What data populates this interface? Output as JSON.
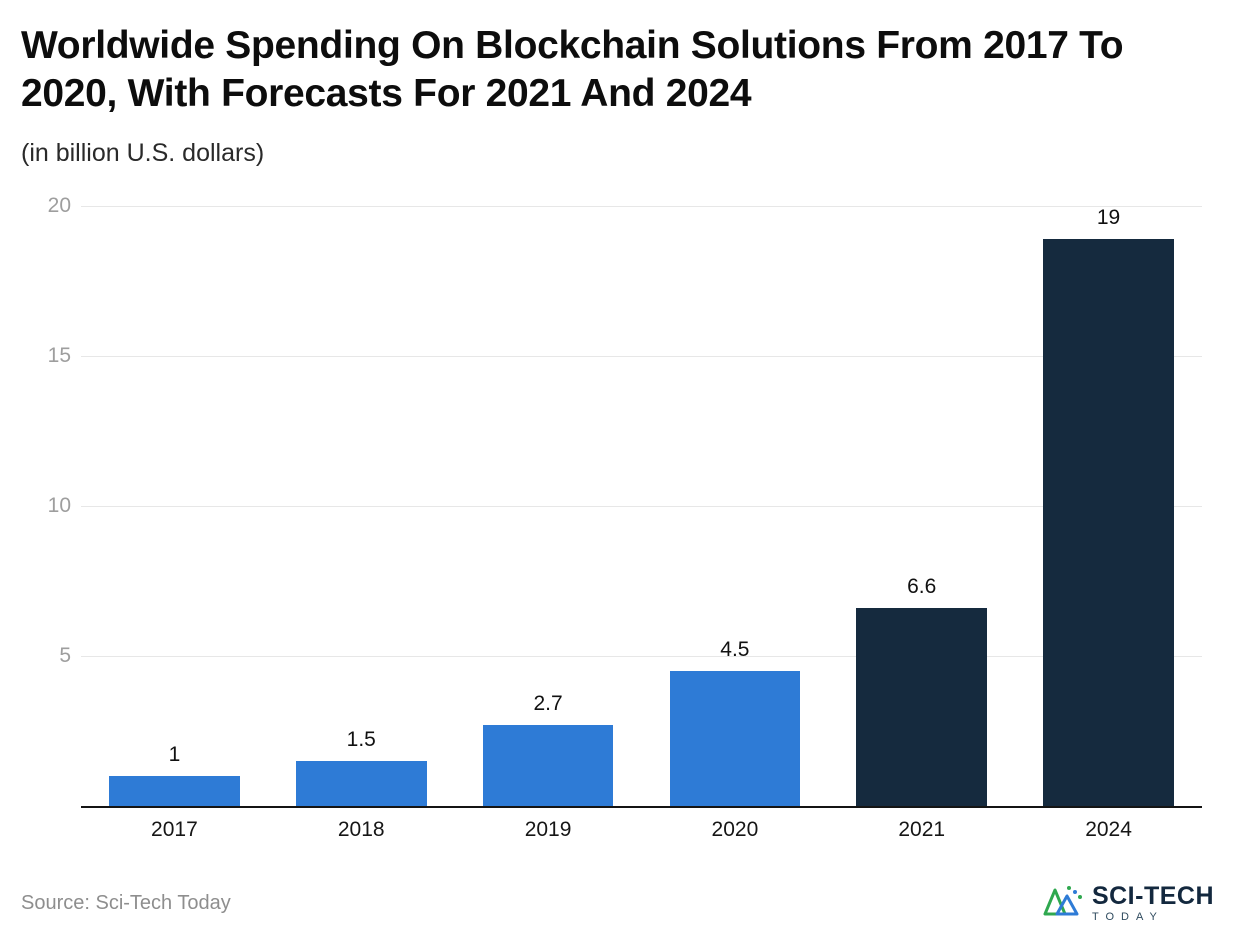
{
  "header": {
    "title": "Worldwide Spending On Blockchain Solutions From 2017 To 2020, With Forecasts For 2021 And 2024",
    "subtitle": "(in billion U.S. dollars)"
  },
  "chart_data": {
    "type": "bar",
    "title": "Worldwide Spending On Blockchain Solutions From 2017 To 2020, With Forecasts For 2021 And 2024",
    "subtitle": "(in billion U.S. dollars)",
    "categories": [
      "2017",
      "2018",
      "2019",
      "2020",
      "2021",
      "2024"
    ],
    "values": [
      1,
      1.5,
      2.7,
      4.5,
      6.6,
      19
    ],
    "value_labels": [
      "1",
      "1.5",
      "2.7",
      "4.5",
      "6.6",
      "19"
    ],
    "bar_colors": [
      "#2e7bd6",
      "#2e7bd6",
      "#2e7bd6",
      "#2e7bd6",
      "#152a3e",
      "#152a3e"
    ],
    "colors": {
      "actual": "#2e7bd6",
      "forecast": "#152a3e"
    },
    "xlabel": "",
    "ylabel": "(in billion U.S. dollars)",
    "ylim": [
      0,
      20
    ],
    "yticks": [
      5,
      10,
      15,
      20
    ],
    "grid": true,
    "legend": "none"
  },
  "footer": {
    "source": "Source: Sci-Tech Today",
    "logo_primary": "SCI-TECH",
    "logo_secondary": "TODAY"
  }
}
